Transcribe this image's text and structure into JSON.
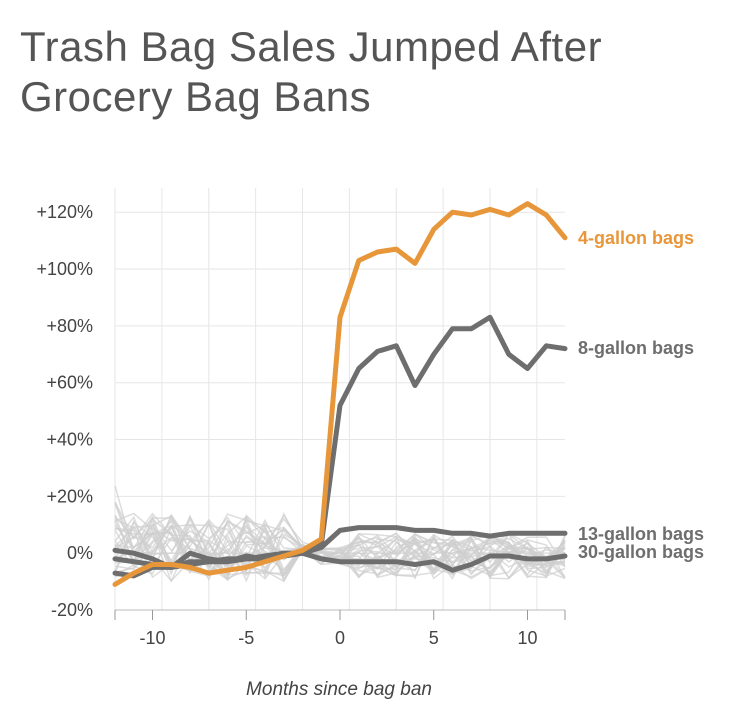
{
  "chart_data": {
    "type": "line",
    "title": "Trash Bag Sales Jumped After Grocery Bag Bans",
    "xlabel": "Months since bag ban",
    "ylabel": "",
    "xlim": [
      -12,
      12
    ],
    "ylim": [
      -20,
      125
    ],
    "xticks": [
      -10,
      -5,
      0,
      5,
      10
    ],
    "yticks": [
      -20,
      0,
      20,
      40,
      60,
      80,
      100,
      120
    ],
    "ytick_labels": [
      "-20%",
      "0%",
      "+20%",
      "+40%",
      "+60%",
      "+80%",
      "+100%",
      "+120%"
    ],
    "grid": true,
    "background_series_count": 30,
    "series": [
      {
        "name": "4-gallon bags",
        "color": "#E8963A",
        "x": [
          -12,
          -11,
          -10,
          -9,
          -8,
          -7,
          -6,
          -5,
          -4,
          -3,
          -2,
          -1,
          0,
          1,
          2,
          3,
          4,
          5,
          6,
          7,
          8,
          9,
          10,
          11,
          12
        ],
        "y": [
          -11,
          -7,
          -4,
          -4,
          -5,
          -7,
          -6,
          -5,
          -3,
          -1,
          1,
          5,
          83,
          103,
          106,
          107,
          102,
          114,
          120,
          119,
          121,
          119,
          123,
          119,
          111
        ]
      },
      {
        "name": "8-gallon bags",
        "color": "#6E6E6E",
        "x": [
          -12,
          -11,
          -10,
          -9,
          -8,
          -7,
          -6,
          -5,
          -4,
          -3,
          -2,
          -1,
          0,
          1,
          2,
          3,
          4,
          5,
          6,
          7,
          8,
          9,
          10,
          11,
          12
        ],
        "y": [
          -7,
          -8,
          -5,
          -5,
          -4,
          -3,
          -3,
          -2,
          -1,
          0,
          0,
          3,
          52,
          65,
          71,
          73,
          59,
          70,
          79,
          79,
          83,
          70,
          65,
          73,
          72
        ]
      },
      {
        "name": "13-gallon bags",
        "color": "#6E6E6E",
        "x": [
          -12,
          -11,
          -10,
          -9,
          -8,
          -7,
          -6,
          -5,
          -4,
          -3,
          -2,
          -1,
          0,
          1,
          2,
          3,
          4,
          5,
          6,
          7,
          8,
          9,
          10,
          11,
          12
        ],
        "y": [
          -2,
          -3,
          -4,
          -5,
          -3,
          -3,
          -2,
          -2,
          -2,
          -1,
          0,
          2,
          8,
          9,
          9,
          9,
          8,
          8,
          7,
          7,
          6,
          7,
          7,
          7,
          7
        ]
      },
      {
        "name": "30-gallon bags",
        "color": "#6E6E6E",
        "x": [
          -12,
          -11,
          -10,
          -9,
          -8,
          -7,
          -6,
          -5,
          -4,
          -3,
          -2,
          -1,
          0,
          1,
          2,
          3,
          4,
          5,
          6,
          7,
          8,
          9,
          10,
          11,
          12
        ],
        "y": [
          1,
          0,
          -2,
          -5,
          0,
          -2,
          -3,
          -1,
          -2,
          -1,
          0,
          -2,
          -3,
          -3,
          -3,
          -3,
          -4,
          -3,
          -6,
          -4,
          -1,
          -1,
          -2,
          -2,
          -1
        ]
      }
    ]
  }
}
